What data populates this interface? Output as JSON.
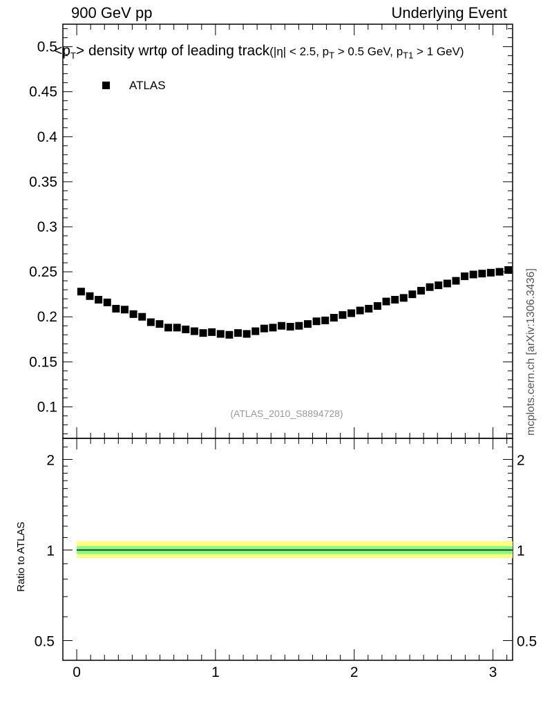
{
  "header": {
    "left": "900 GeV pp",
    "right": "Underlying Event"
  },
  "watermark": "mcplots.cern.ch [arXiv:1306.3436]",
  "analysis_label": "(ATLAS_2010_S8894728)",
  "ratio_ylabel": "Ratio to ATLAS",
  "legend": [
    "ATLAS"
  ],
  "title": {
    "main_a": "<p",
    "main_sub": "T",
    "main_b": "> density wrtφ of leading track",
    "cut_a": "(|η| < 2.5, p",
    "cut_sub1": "T",
    "cut_b": " > 0.5 GeV, p",
    "cut_sub2": "T1",
    "cut_c": " > 1 GeV)"
  },
  "colors": {
    "marker": "#000000",
    "band_outer": "#ffff80",
    "band_inner": "#80ff80",
    "ratio_line": "#000000"
  },
  "chart_data": [
    {
      "type": "scatter",
      "panel": "main",
      "series": [
        {
          "name": "ATLAS",
          "x": [
            0.0314,
            0.0942,
            0.157,
            0.2199,
            0.2827,
            0.3456,
            0.4084,
            0.4712,
            0.5341,
            0.5969,
            0.6597,
            0.7226,
            0.7854,
            0.8482,
            0.9111,
            0.9739,
            1.0367,
            1.0996,
            1.1624,
            1.2252,
            1.2881,
            1.3509,
            1.4137,
            1.4765,
            1.5394,
            1.6022,
            1.665,
            1.7279,
            1.7907,
            1.8535,
            1.9164,
            1.9792,
            2.042,
            2.1049,
            2.1677,
            2.2305,
            2.2934,
            2.3562,
            2.419,
            2.4819,
            2.5447,
            2.6075,
            2.6704,
            2.7332,
            2.796,
            2.8588,
            2.9217,
            2.9845,
            3.0473,
            3.1102
          ],
          "y": [
            0.228,
            0.223,
            0.219,
            0.216,
            0.209,
            0.208,
            0.203,
            0.2,
            0.194,
            0.192,
            0.188,
            0.188,
            0.186,
            0.184,
            0.182,
            0.183,
            0.181,
            0.18,
            0.182,
            0.181,
            0.184,
            0.187,
            0.188,
            0.19,
            0.189,
            0.19,
            0.192,
            0.195,
            0.196,
            0.199,
            0.202,
            0.204,
            0.207,
            0.209,
            0.212,
            0.217,
            0.219,
            0.221,
            0.225,
            0.229,
            0.233,
            0.235,
            0.237,
            0.24,
            0.245,
            0.247,
            0.248,
            0.249,
            0.25,
            0.252
          ]
        }
      ],
      "xlim": [
        -0.1,
        3.1416
      ],
      "ylim": [
        0.065,
        0.525
      ],
      "yticks": [
        0.1,
        0.15,
        0.2,
        0.25,
        0.3,
        0.35,
        0.4,
        0.45,
        0.5
      ],
      "ytick_labels": [
        "0.1",
        "0.15",
        "0.2",
        "0.25",
        "0.3",
        "0.35",
        "0.4",
        "0.45",
        "0.5"
      ],
      "legend_position": "top-left"
    },
    {
      "type": "line",
      "panel": "ratio",
      "ylabel": "Ratio to ATLAS",
      "scale": "log",
      "series": [
        {
          "name": "ATLAS",
          "x": [
            0.0,
            3.1416
          ],
          "y": [
            1,
            1
          ],
          "band_outer": [
            0.94,
            1.07
          ],
          "band_inner": [
            0.97,
            1.03
          ]
        }
      ],
      "xlim": [
        -0.1,
        3.1416
      ],
      "ylim": [
        0.43,
        2.35
      ],
      "yticks": [
        0.5,
        1,
        2
      ],
      "ytick_labels": [
        "0.5",
        "1",
        "2"
      ],
      "xticks": [
        0,
        1,
        2,
        3
      ],
      "xtick_labels": [
        "0",
        "1",
        "2",
        "3"
      ]
    }
  ]
}
